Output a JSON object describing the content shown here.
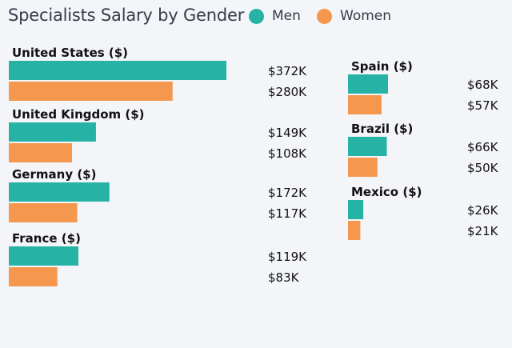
{
  "title": "Specialists Salary by Gender",
  "colors": {
    "men": "#26b3a5",
    "women": "#f5974d",
    "background": "#f3f5f9"
  },
  "chart_data": {
    "type": "bar",
    "orientation": "horizontal",
    "title": "Specialists Salary by Gender",
    "legend": {
      "position": "top-right",
      "entries": [
        "Men",
        "Women"
      ]
    },
    "grid": false,
    "series": [
      {
        "name": "Men",
        "color": "#26b3a5"
      },
      {
        "name": "Women",
        "color": "#f5974d"
      }
    ],
    "groups": [
      {
        "category": "United States ($)",
        "values": [
          372,
          280
        ],
        "labels": [
          "$372K",
          "$280K"
        ]
      },
      {
        "category": "United Kingdom ($)",
        "values": [
          149,
          108
        ],
        "labels": [
          "$149K",
          "$108K"
        ]
      },
      {
        "category": "Germany ($)",
        "values": [
          172,
          117
        ],
        "labels": [
          "$172K",
          "$117K"
        ]
      },
      {
        "category": "France ($)",
        "values": [
          119,
          83
        ],
        "labels": [
          "$119K",
          "$83K"
        ]
      },
      {
        "category": "Spain ($)",
        "values": [
          68,
          57
        ],
        "labels": [
          "$68K",
          "$57K"
        ]
      },
      {
        "category": "Brazil ($)",
        "values": [
          66,
          50
        ],
        "labels": [
          "$66K",
          "$50K"
        ]
      },
      {
        "category": "Mexico ($)",
        "values": [
          26,
          21
        ],
        "labels": [
          "$26K",
          "$21K"
        ]
      }
    ],
    "unit": "K USD"
  }
}
